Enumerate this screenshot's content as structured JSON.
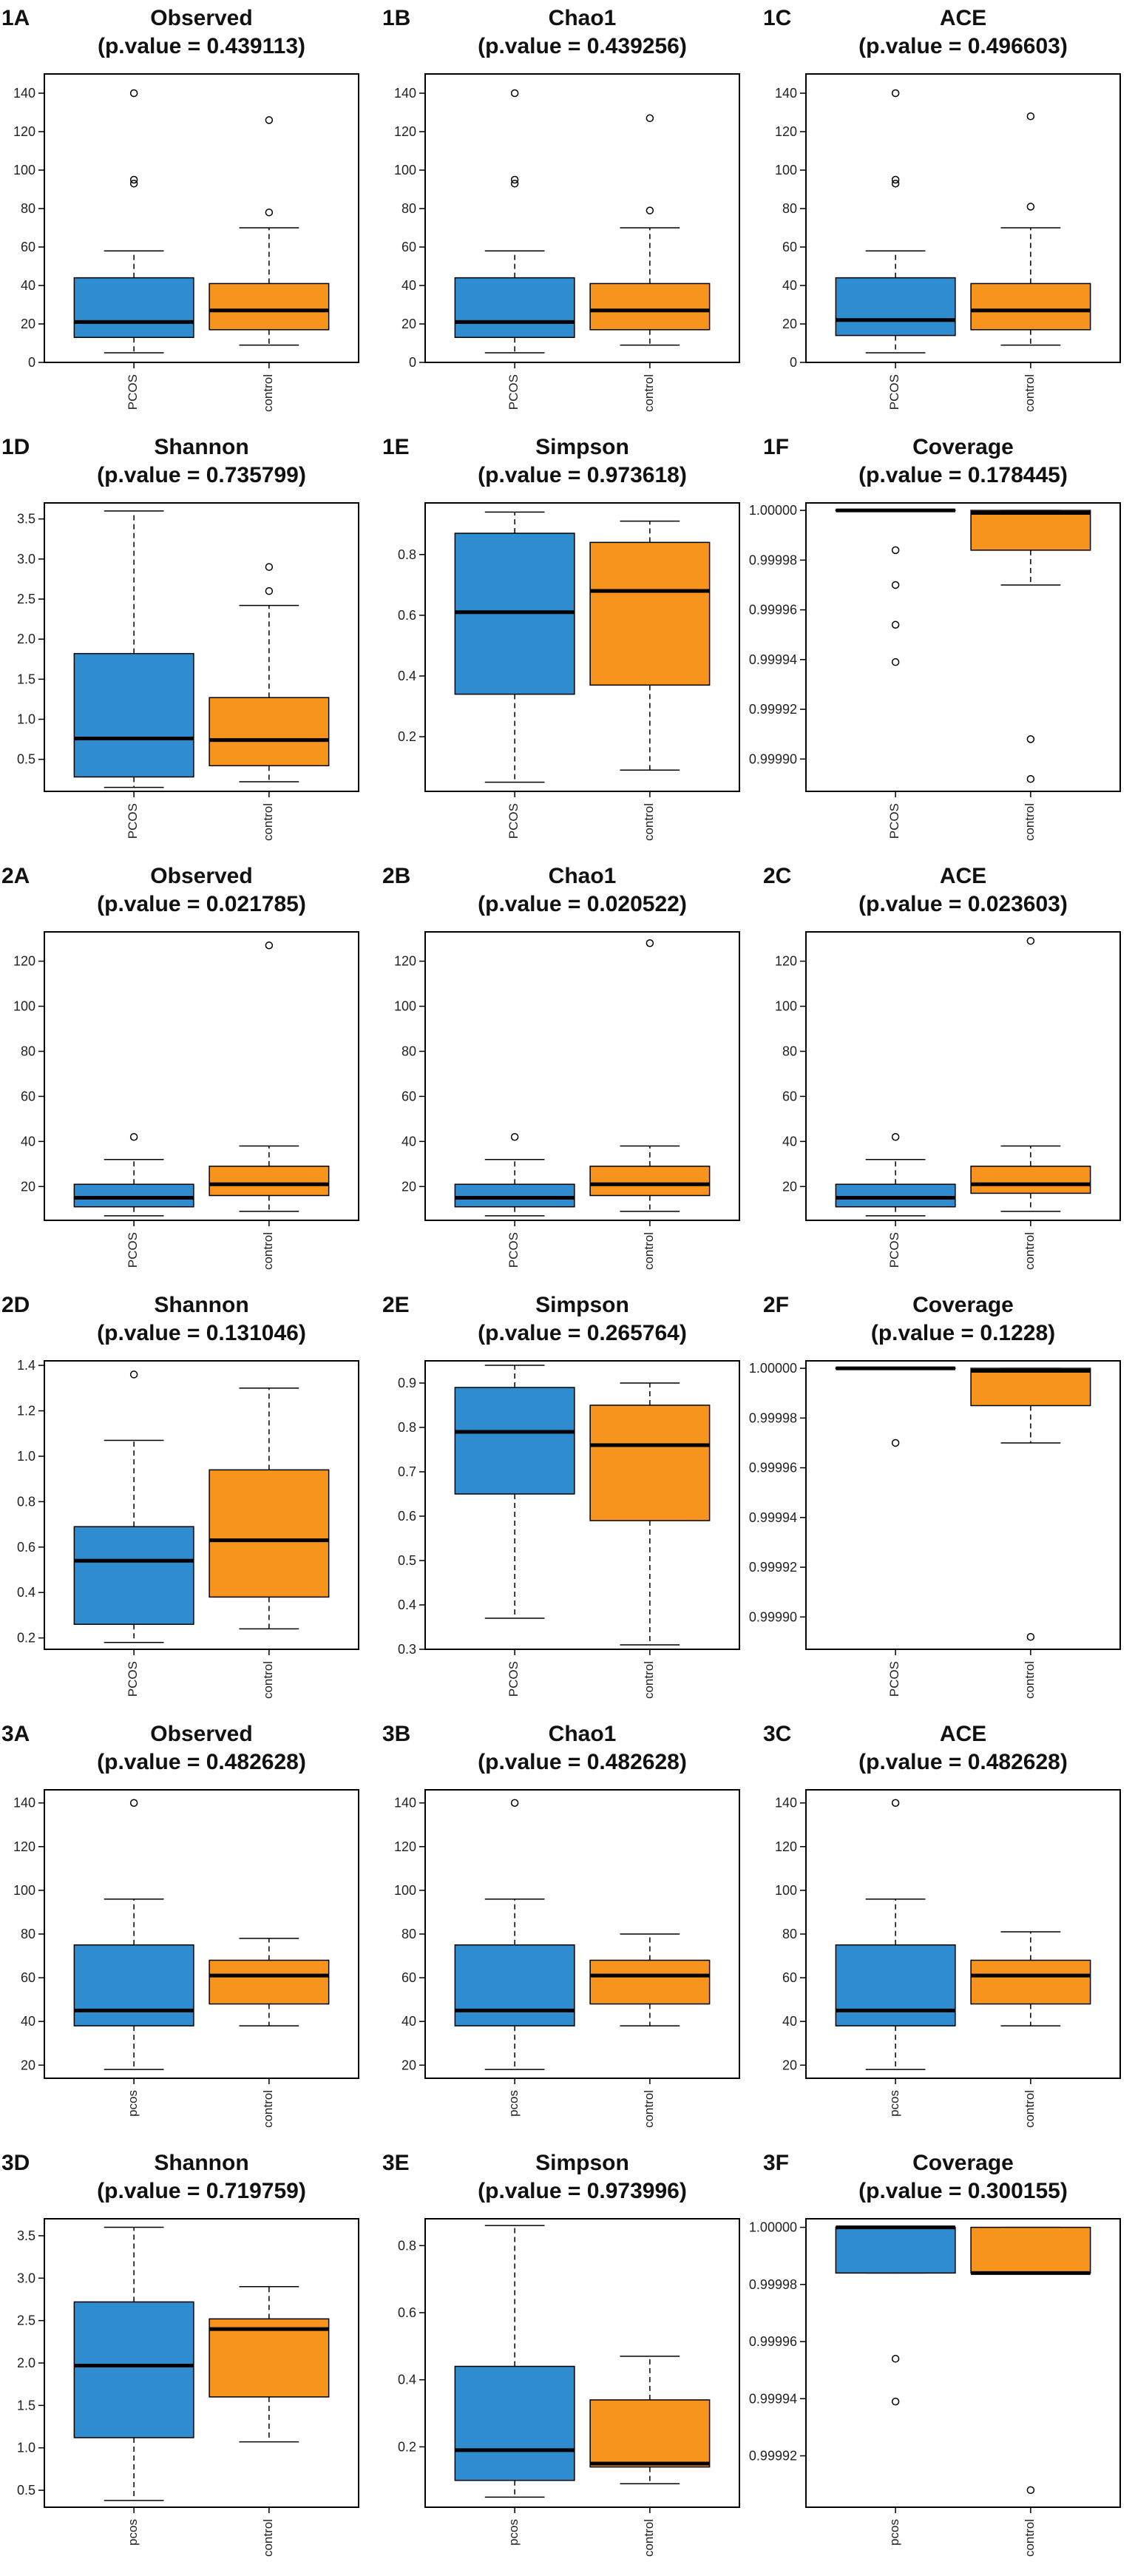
{
  "colors": {
    "pcos": "#2e8ccf",
    "control": "#f7941d",
    "line": "#000000"
  },
  "chart_data": [
    {
      "label": "1A",
      "type": "box",
      "title": "Observed",
      "subtitle": "(p.value = 0.439113)",
      "ylim": [
        0,
        150
      ],
      "yticks": [
        "0",
        "20",
        "40",
        "60",
        "80",
        "100",
        "120",
        "140"
      ],
      "categories": [
        "PCOS",
        "control"
      ],
      "boxes": [
        {
          "whisker_low": 5,
          "q1": 13,
          "median": 21,
          "q3": 44,
          "whisker_high": 58,
          "outliers": [
            93,
            95,
            140
          ]
        },
        {
          "whisker_low": 9,
          "q1": 17,
          "median": 27,
          "q3": 41,
          "whisker_high": 70,
          "outliers": [
            78,
            126
          ]
        }
      ]
    },
    {
      "label": "1B",
      "type": "box",
      "title": "Chao1",
      "subtitle": "(p.value = 0.439256)",
      "ylim": [
        0,
        150
      ],
      "yticks": [
        "0",
        "20",
        "40",
        "60",
        "80",
        "100",
        "120",
        "140"
      ],
      "categories": [
        "PCOS",
        "control"
      ],
      "boxes": [
        {
          "whisker_low": 5,
          "q1": 13,
          "median": 21,
          "q3": 44,
          "whisker_high": 58,
          "outliers": [
            93,
            95,
            140
          ]
        },
        {
          "whisker_low": 9,
          "q1": 17,
          "median": 27,
          "q3": 41,
          "whisker_high": 70,
          "outliers": [
            79,
            127
          ]
        }
      ]
    },
    {
      "label": "1C",
      "type": "box",
      "title": "ACE",
      "subtitle": "(p.value = 0.496603)",
      "ylim": [
        0,
        150
      ],
      "yticks": [
        "0",
        "20",
        "40",
        "60",
        "80",
        "100",
        "120",
        "140"
      ],
      "categories": [
        "PCOS",
        "control"
      ],
      "boxes": [
        {
          "whisker_low": 5,
          "q1": 14,
          "median": 22,
          "q3": 44,
          "whisker_high": 58,
          "outliers": [
            93,
            95,
            140
          ]
        },
        {
          "whisker_low": 9,
          "q1": 17,
          "median": 27,
          "q3": 41,
          "whisker_high": 70,
          "outliers": [
            81,
            128
          ]
        }
      ]
    },
    {
      "label": "1D",
      "type": "box",
      "title": "Shannon",
      "subtitle": "(p.value = 0.735799)",
      "ylim": [
        0.1,
        3.7
      ],
      "yticks": [
        "0.5",
        "1.0",
        "1.5",
        "2.0",
        "2.5",
        "3.0",
        "3.5"
      ],
      "categories": [
        "PCOS",
        "control"
      ],
      "boxes": [
        {
          "whisker_low": 0.15,
          "q1": 0.28,
          "median": 0.76,
          "q3": 1.82,
          "whisker_high": 3.6,
          "outliers": []
        },
        {
          "whisker_low": 0.22,
          "q1": 0.42,
          "median": 0.74,
          "q3": 1.27,
          "whisker_high": 2.42,
          "outliers": [
            2.6,
            2.9
          ]
        }
      ]
    },
    {
      "label": "1E",
      "type": "box",
      "title": "Simpson",
      "subtitle": "(p.value = 0.973618)",
      "ylim": [
        0.02,
        0.97
      ],
      "yticks": [
        "0.2",
        "0.4",
        "0.6",
        "0.8"
      ],
      "categories": [
        "PCOS",
        "control"
      ],
      "boxes": [
        {
          "whisker_low": 0.05,
          "q1": 0.34,
          "median": 0.61,
          "q3": 0.87,
          "whisker_high": 0.94,
          "outliers": []
        },
        {
          "whisker_low": 0.09,
          "q1": 0.37,
          "median": 0.68,
          "q3": 0.84,
          "whisker_high": 0.91,
          "outliers": []
        }
      ]
    },
    {
      "label": "1F",
      "type": "box",
      "title": "Coverage",
      "subtitle": "(p.value = 0.178445)",
      "ylim": [
        0.999887,
        1.000003
      ],
      "yticks": [
        "0.99990",
        "0.99992",
        "0.99994",
        "0.99996",
        "0.99998",
        "1.00000"
      ],
      "categories": [
        "PCOS",
        "control"
      ],
      "boxes": [
        {
          "whisker_low": 1.0,
          "q1": 1.0,
          "median": 1.0,
          "q3": 1.0,
          "whisker_high": 1.0,
          "outliers": [
            0.999984,
            0.99997,
            0.999954,
            0.999939
          ]
        },
        {
          "whisker_low": 0.99997,
          "q1": 0.999984,
          "median": 0.999999,
          "q3": 1.0,
          "whisker_high": 1.0,
          "outliers": [
            0.999908,
            0.999892
          ]
        }
      ]
    },
    {
      "label": "2A",
      "type": "box",
      "title": "Observed",
      "subtitle": "(p.value = 0.021785)",
      "ylim": [
        5,
        133
      ],
      "yticks": [
        "20",
        "40",
        "60",
        "80",
        "100",
        "120"
      ],
      "categories": [
        "PCOS",
        "control"
      ],
      "boxes": [
        {
          "whisker_low": 7,
          "q1": 11,
          "median": 15,
          "q3": 21,
          "whisker_high": 32,
          "outliers": [
            42
          ]
        },
        {
          "whisker_low": 9,
          "q1": 16,
          "median": 21,
          "q3": 29,
          "whisker_high": 38,
          "outliers": [
            127
          ]
        }
      ]
    },
    {
      "label": "2B",
      "type": "box",
      "title": "Chao1",
      "subtitle": "(p.value = 0.020522)",
      "ylim": [
        5,
        133
      ],
      "yticks": [
        "20",
        "40",
        "60",
        "80",
        "100",
        "120"
      ],
      "categories": [
        "PCOS",
        "control"
      ],
      "boxes": [
        {
          "whisker_low": 7,
          "q1": 11,
          "median": 15,
          "q3": 21,
          "whisker_high": 32,
          "outliers": [
            42
          ]
        },
        {
          "whisker_low": 9,
          "q1": 16,
          "median": 21,
          "q3": 29,
          "whisker_high": 38,
          "outliers": [
            128
          ]
        }
      ]
    },
    {
      "label": "2C",
      "type": "box",
      "title": "ACE",
      "subtitle": "(p.value = 0.023603)",
      "ylim": [
        5,
        133
      ],
      "yticks": [
        "20",
        "40",
        "60",
        "80",
        "100",
        "120"
      ],
      "categories": [
        "PCOS",
        "control"
      ],
      "boxes": [
        {
          "whisker_low": 7,
          "q1": 11,
          "median": 15,
          "q3": 21,
          "whisker_high": 32,
          "outliers": [
            42
          ]
        },
        {
          "whisker_low": 9,
          "q1": 17,
          "median": 21,
          "q3": 29,
          "whisker_high": 38,
          "outliers": [
            129
          ]
        }
      ]
    },
    {
      "label": "2D",
      "type": "box",
      "title": "Shannon",
      "subtitle": "(p.value = 0.131046)",
      "ylim": [
        0.15,
        1.42
      ],
      "yticks": [
        "0.2",
        "0.4",
        "0.6",
        "0.8",
        "1.0",
        "1.2",
        "1.4"
      ],
      "categories": [
        "PCOS",
        "control"
      ],
      "boxes": [
        {
          "whisker_low": 0.18,
          "q1": 0.26,
          "median": 0.54,
          "q3": 0.69,
          "whisker_high": 1.07,
          "outliers": [
            1.36
          ]
        },
        {
          "whisker_low": 0.24,
          "q1": 0.38,
          "median": 0.63,
          "q3": 0.94,
          "whisker_high": 1.3,
          "outliers": []
        }
      ]
    },
    {
      "label": "2E",
      "type": "box",
      "title": "Simpson",
      "subtitle": "(p.value = 0.265764)",
      "ylim": [
        0.3,
        0.95
      ],
      "yticks": [
        "0.3",
        "0.4",
        "0.5",
        "0.6",
        "0.7",
        "0.8",
        "0.9"
      ],
      "categories": [
        "PCOS",
        "control"
      ],
      "boxes": [
        {
          "whisker_low": 0.37,
          "q1": 0.65,
          "median": 0.79,
          "q3": 0.89,
          "whisker_high": 0.94,
          "outliers": []
        },
        {
          "whisker_low": 0.31,
          "q1": 0.59,
          "median": 0.76,
          "q3": 0.85,
          "whisker_high": 0.9,
          "outliers": []
        }
      ]
    },
    {
      "label": "2F",
      "type": "box",
      "title": "Coverage",
      "subtitle": "(p.value = 0.1228)",
      "ylim": [
        0.999887,
        1.000003
      ],
      "yticks": [
        "0.99990",
        "0.99992",
        "0.99994",
        "0.99996",
        "0.99998",
        "1.00000"
      ],
      "categories": [
        "PCOS",
        "control"
      ],
      "boxes": [
        {
          "whisker_low": 1.0,
          "q1": 1.0,
          "median": 1.0,
          "q3": 1.0,
          "whisker_high": 1.0,
          "outliers": [
            0.99997
          ]
        },
        {
          "whisker_low": 0.99997,
          "q1": 0.999985,
          "median": 0.999999,
          "q3": 1.0,
          "whisker_high": 1.0,
          "outliers": [
            0.999892
          ]
        }
      ]
    },
    {
      "label": "3A",
      "type": "box",
      "title": "Observed",
      "subtitle": "(p.value = 0.482628)",
      "ylim": [
        14,
        146
      ],
      "yticks": [
        "20",
        "40",
        "60",
        "80",
        "100",
        "120",
        "140"
      ],
      "categories": [
        "pcos",
        "control"
      ],
      "boxes": [
        {
          "whisker_low": 18,
          "q1": 38,
          "median": 45,
          "q3": 75,
          "whisker_high": 96,
          "outliers": [
            140
          ]
        },
        {
          "whisker_low": 38,
          "q1": 48,
          "median": 61,
          "q3": 68,
          "whisker_high": 78,
          "outliers": []
        }
      ]
    },
    {
      "label": "3B",
      "type": "box",
      "title": "Chao1",
      "subtitle": "(p.value = 0.482628)",
      "ylim": [
        14,
        146
      ],
      "yticks": [
        "20",
        "40",
        "60",
        "80",
        "100",
        "120",
        "140"
      ],
      "categories": [
        "pcos",
        "control"
      ],
      "boxes": [
        {
          "whisker_low": 18,
          "q1": 38,
          "median": 45,
          "q3": 75,
          "whisker_high": 96,
          "outliers": [
            140
          ]
        },
        {
          "whisker_low": 38,
          "q1": 48,
          "median": 61,
          "q3": 68,
          "whisker_high": 80,
          "outliers": []
        }
      ]
    },
    {
      "label": "3C",
      "type": "box",
      "title": "ACE",
      "subtitle": "(p.value = 0.482628)",
      "ylim": [
        14,
        146
      ],
      "yticks": [
        "20",
        "40",
        "60",
        "80",
        "100",
        "120",
        "140"
      ],
      "categories": [
        "pcos",
        "control"
      ],
      "boxes": [
        {
          "whisker_low": 18,
          "q1": 38,
          "median": 45,
          "q3": 75,
          "whisker_high": 96,
          "outliers": [
            140
          ]
        },
        {
          "whisker_low": 38,
          "q1": 48,
          "median": 61,
          "q3": 68,
          "whisker_high": 81,
          "outliers": []
        }
      ]
    },
    {
      "label": "3D",
      "type": "box",
      "title": "Shannon",
      "subtitle": "(p.value = 0.719759)",
      "ylim": [
        0.3,
        3.7
      ],
      "yticks": [
        "0.5",
        "1.0",
        "1.5",
        "2.0",
        "2.5",
        "3.0",
        "3.5"
      ],
      "categories": [
        "pcos",
        "control"
      ],
      "boxes": [
        {
          "whisker_low": 0.38,
          "q1": 1.12,
          "median": 1.97,
          "q3": 2.72,
          "whisker_high": 3.6,
          "outliers": []
        },
        {
          "whisker_low": 1.07,
          "q1": 1.6,
          "median": 2.4,
          "q3": 2.52,
          "whisker_high": 2.9,
          "outliers": []
        }
      ]
    },
    {
      "label": "3E",
      "type": "box",
      "title": "Simpson",
      "subtitle": "(p.value = 0.973996)",
      "ylim": [
        0.02,
        0.88
      ],
      "yticks": [
        "0.2",
        "0.4",
        "0.6",
        "0.8"
      ],
      "categories": [
        "pcos",
        "control"
      ],
      "boxes": [
        {
          "whisker_low": 0.05,
          "q1": 0.1,
          "median": 0.19,
          "q3": 0.44,
          "whisker_high": 0.86,
          "outliers": []
        },
        {
          "whisker_low": 0.09,
          "q1": 0.14,
          "median": 0.15,
          "q3": 0.34,
          "whisker_high": 0.47,
          "outliers": []
        }
      ]
    },
    {
      "label": "3F",
      "type": "box",
      "title": "Coverage",
      "subtitle": "(p.value = 0.300155)",
      "ylim": [
        0.999902,
        1.000003
      ],
      "yticks": [
        "0.99992",
        "0.99994",
        "0.99996",
        "0.99998",
        "1.00000"
      ],
      "categories": [
        "pcos",
        "control"
      ],
      "boxes": [
        {
          "whisker_low": 0.999984,
          "q1": 0.999984,
          "median": 1.0,
          "q3": 1.0,
          "whisker_high": 1.0,
          "outliers": [
            0.999954,
            0.999939
          ]
        },
        {
          "whisker_low": 0.999984,
          "q1": 0.999984,
          "median": 0.999984,
          "q3": 1.0,
          "whisker_high": 1.0,
          "outliers": [
            0.999908
          ]
        }
      ]
    }
  ]
}
